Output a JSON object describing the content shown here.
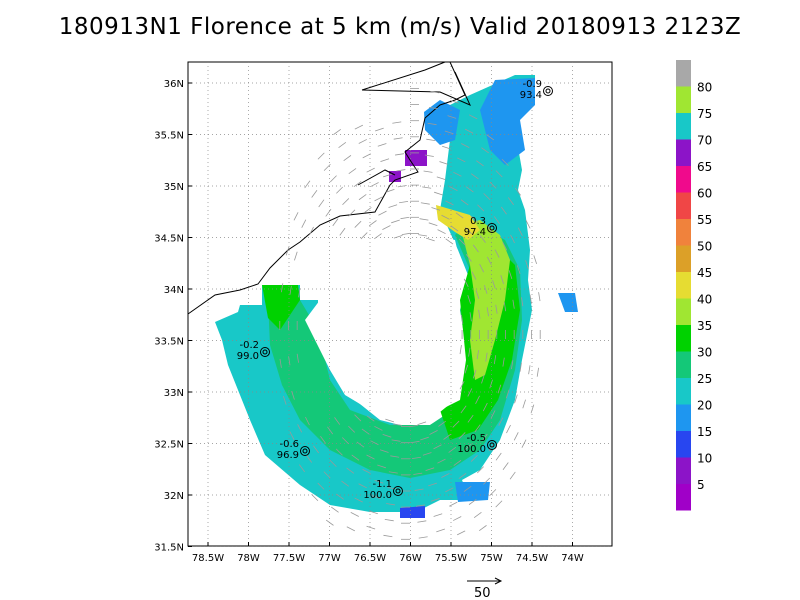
{
  "title": "180913N1 Florence at 5 km (m/s) Valid 20180913 2123Z",
  "axes": {
    "lon_labels": [
      "78.5W",
      "78W",
      "77.5W",
      "77W",
      "76.5W",
      "76W",
      "75.5W",
      "75W",
      "74.5W",
      "74W"
    ],
    "lat_labels": [
      "36N",
      "35.5N",
      "35N",
      "34.5N",
      "34N",
      "33.5N",
      "33N",
      "32.5N",
      "32N",
      "31.5N"
    ]
  },
  "colorbar": {
    "labels": [
      "80",
      "75",
      "70",
      "65",
      "60",
      "55",
      "50",
      "45",
      "40",
      "35",
      "30",
      "25",
      "20",
      "15",
      "10",
      "5"
    ],
    "colors": [
      "#a8a8a8",
      "#a0e632",
      "#18c8c8",
      "#8c14c8",
      "#f00a8c",
      "#f04646",
      "#f0823c",
      "#dca028",
      "#e6dc32",
      "#a0e632",
      "#00d200",
      "#14c878",
      "#18c8c8",
      "#1e96f0",
      "#2846f0",
      "#8c14c8",
      "#a000c8"
    ]
  },
  "scale_arrow": {
    "label": "50"
  },
  "stations": [
    {
      "top": "-0.9",
      "bottom": "93.4"
    },
    {
      "top": "0.3",
      "bottom": "97.4"
    },
    {
      "top": "-0.2",
      "bottom": "99.0"
    },
    {
      "top": "-0.6",
      "bottom": "96.9"
    },
    {
      "top": "-0.5",
      "bottom": "100.0"
    },
    {
      "top": "-1.1",
      "bottom": "100.0"
    }
  ]
}
